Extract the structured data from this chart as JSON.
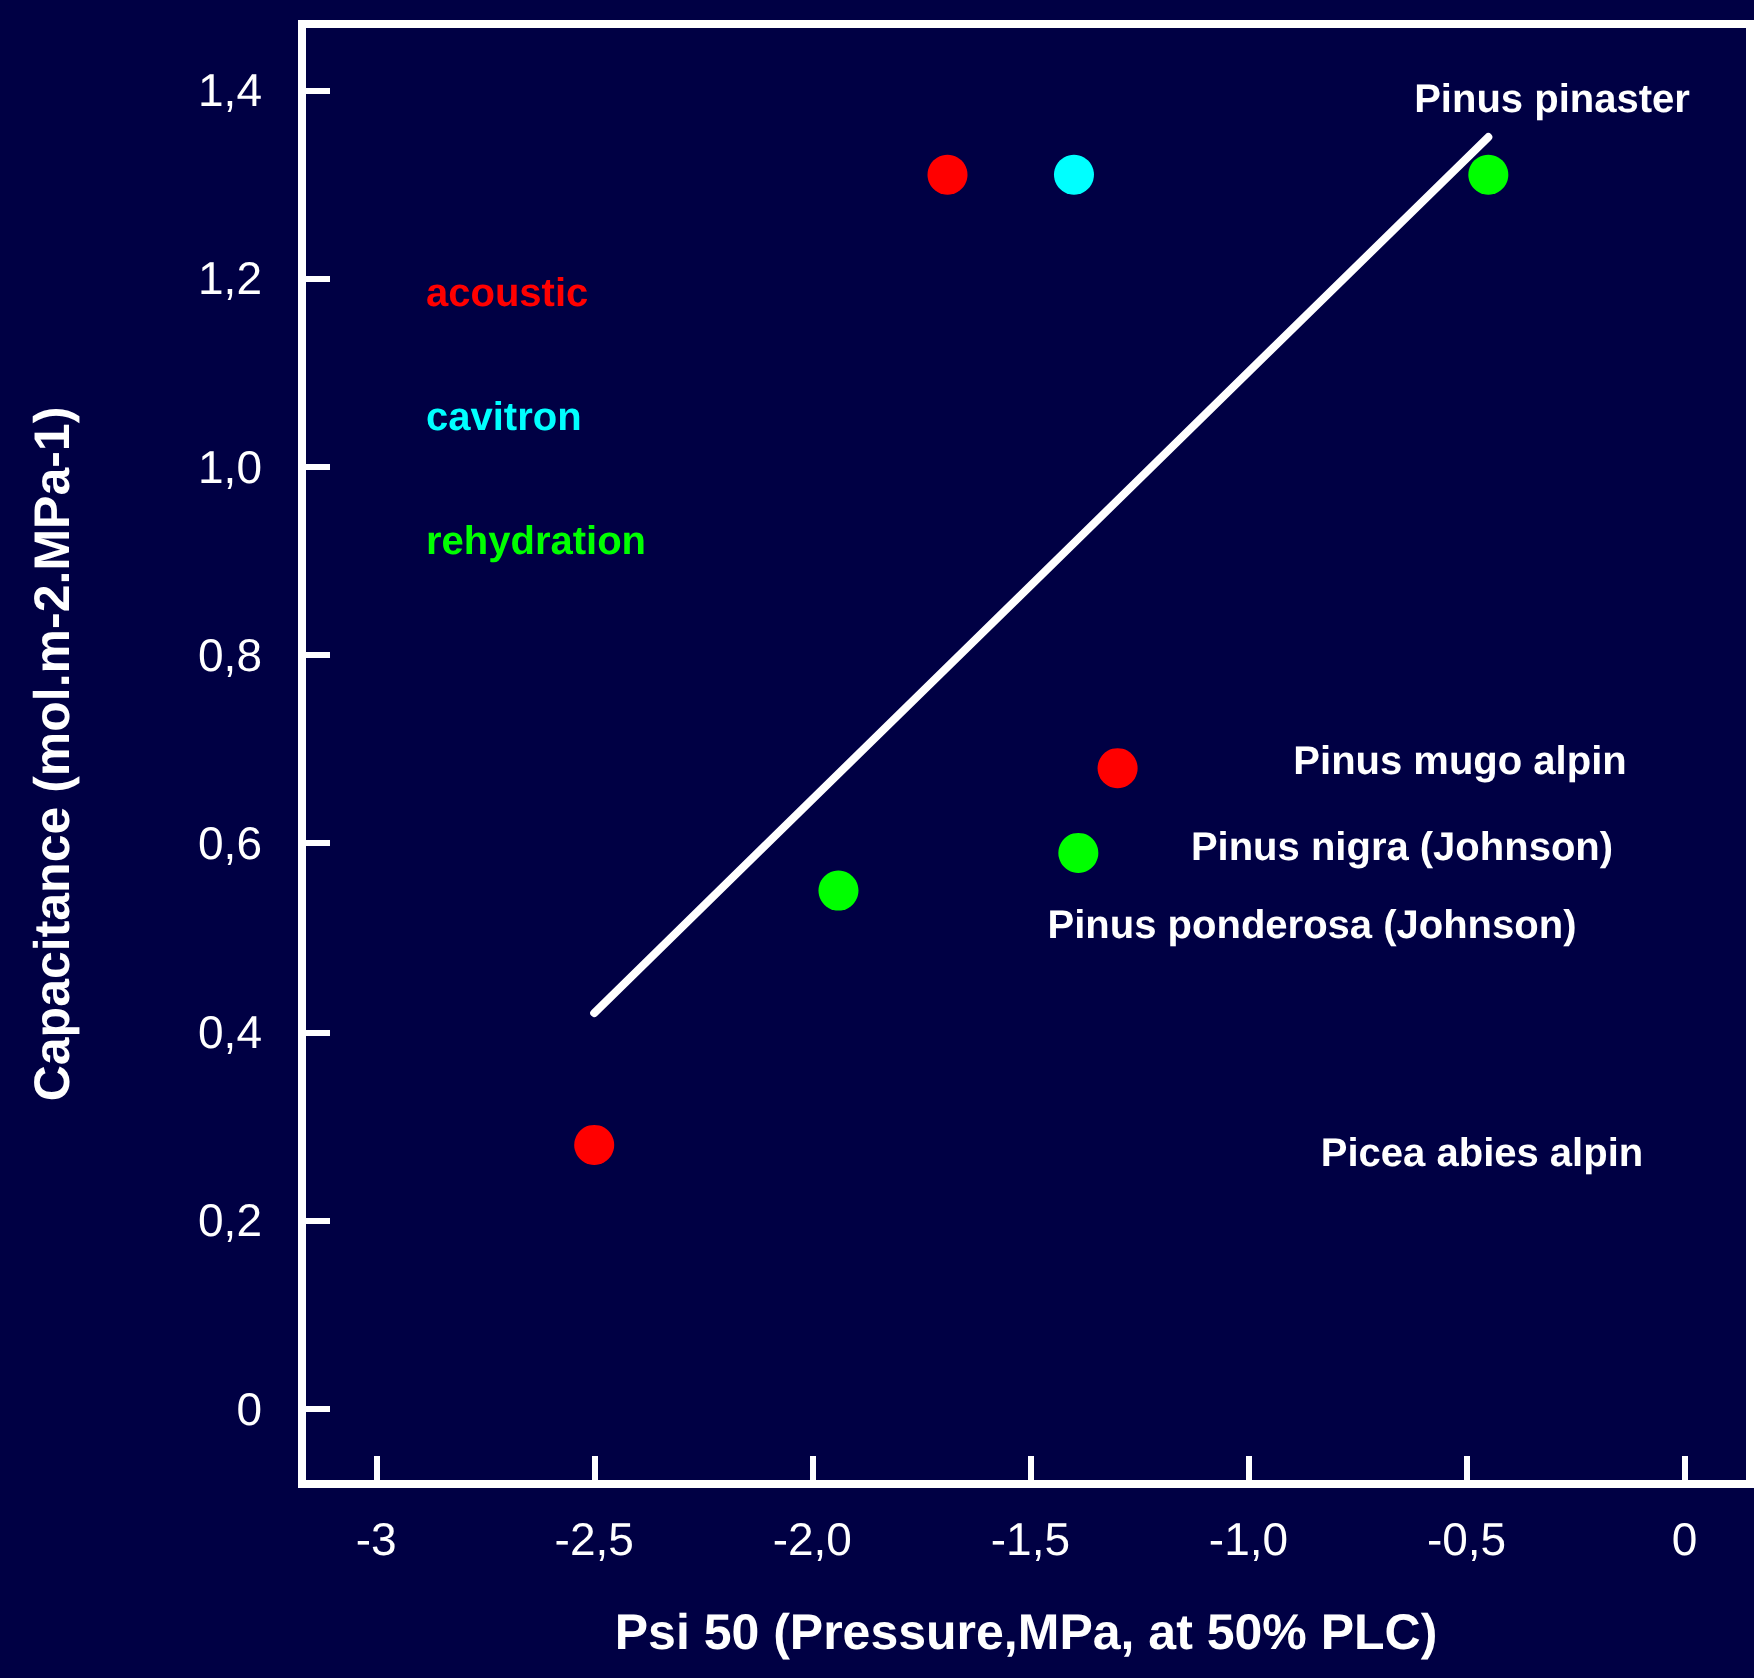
{
  "chart_data": {
    "type": "scatter",
    "xlabel": "Psi 50 (Pressure,MPa, at 50% PLC)",
    "ylabel": "Capacitance (mol.m-2.MPa-1)",
    "xlim": [
      -3.17,
      0.15
    ],
    "ylim": [
      -0.08,
      1.47
    ],
    "xticks": [
      -3,
      {
        "value": -2.5,
        "label": "-2,5"
      },
      {
        "value": -2,
        "label": "-2,0"
      },
      {
        "value": -1.5,
        "label": "-1,5"
      },
      {
        "value": -1,
        "label": "-1,0"
      },
      {
        "value": -0.5,
        "label": "-0,5"
      },
      0
    ],
    "yticks": [
      0,
      {
        "value": 0.2,
        "label": "0,2"
      },
      {
        "value": 0.4,
        "label": "0,4"
      },
      {
        "value": 0.6,
        "label": "0,6"
      },
      {
        "value": 0.8,
        "label": "0,8"
      },
      {
        "value": 1.0,
        "label": "1,0"
      },
      {
        "value": 1.2,
        "label": "1,2"
      },
      {
        "value": 1.4,
        "label": "1,4"
      }
    ],
    "grid": false,
    "legend": "top left",
    "marker": "circle",
    "series": [
      {
        "name": "acoustic",
        "color": "#ff0000",
        "x": [
          -1.69,
          -1.3,
          -2.5
        ],
        "values": [
          1.31,
          0.68,
          0.28
        ]
      },
      {
        "name": "cavitron",
        "color": "#00ffff",
        "x": [
          -1.4
        ],
        "values": [
          1.31
        ]
      },
      {
        "name": "rehydration",
        "color": "#00ff00",
        "x": [
          -0.45,
          -1.39,
          -1.94
        ],
        "values": [
          1.31,
          0.59,
          0.55
        ]
      },
      {
        "type": "line",
        "color": "#ffffff",
        "x": [
          -2.5,
          -0.45
        ],
        "values": [
          0.42,
          1.35
        ],
        "line_style": "solid",
        "marker": "none"
      }
    ],
    "annotations": [
      "Pinus pinaster",
      "Pinus mugo alpin",
      "Pinus nigra (Johnson)",
      "Pinus ponderosa (Johnson)",
      "Picea abies alpin"
    ]
  }
}
